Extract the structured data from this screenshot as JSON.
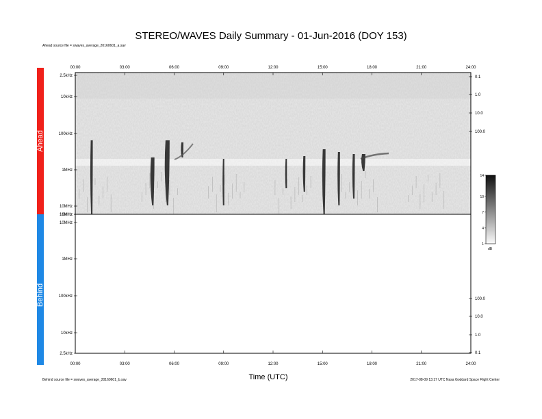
{
  "title": "STEREO/WAVES Daily Summary - 01-Jun-2016 (DOY 153)",
  "ahead_source": "Ahead source file = swaves_average_20160601_a.sav",
  "behind_source": "Behind source file = swaves_average_20160601_b.sav",
  "footer_right": "2017-08-09 13:17 UTC Nasa Goddard Space Flight Center",
  "colorbar": {
    "ticks": [
      "14",
      "10",
      "7",
      "4",
      "1"
    ],
    "unit": "dB",
    "range": [
      1,
      14
    ]
  },
  "chart_data": [
    {
      "type": "heatmap",
      "panel": "Ahead",
      "xlabel": "",
      "x_ticks": [
        "00:00",
        "03:00",
        "06:00",
        "09:00",
        "12:00",
        "15:00",
        "18:00",
        "21:00",
        "24:00"
      ],
      "x_range": [
        0,
        24
      ],
      "y_ticks_left": [
        "2.5kHz",
        "10kHz",
        "100kHz",
        "1MHz",
        "10MHz",
        "16MHz"
      ],
      "y_ticks_right": [
        "0.1",
        "1.0",
        "10.0",
        "100.0"
      ],
      "y_scale": "log",
      "bursts_utc_hours": [
        1.0,
        4.7,
        5.6,
        6.5,
        9.0,
        12.8,
        13.9,
        15.1,
        16.0,
        16.9,
        17.5
      ],
      "colorbar_label": "dB"
    },
    {
      "type": "heatmap",
      "panel": "Behind",
      "xlabel": "Time (UTC)",
      "x_ticks": [
        "00:00",
        "03:00",
        "06:00",
        "09:00",
        "12:00",
        "15:00",
        "18:00",
        "21:00",
        "24:00"
      ],
      "x_range": [
        0,
        24
      ],
      "y_ticks_left": [
        "16MHz",
        "10MHz",
        "1MHz",
        "100kHz",
        "10kHz",
        "2.5kHz"
      ],
      "y_ticks_right": [
        "100.0",
        "10.0",
        "1.0",
        "0.1"
      ],
      "y_scale": "log",
      "bursts_utc_hours": []
    }
  ],
  "side_labels": {
    "ahead": "Ahead",
    "behind": "Behind"
  },
  "colors": {
    "ahead": "#f0201a",
    "behind": "#1e88e5"
  }
}
